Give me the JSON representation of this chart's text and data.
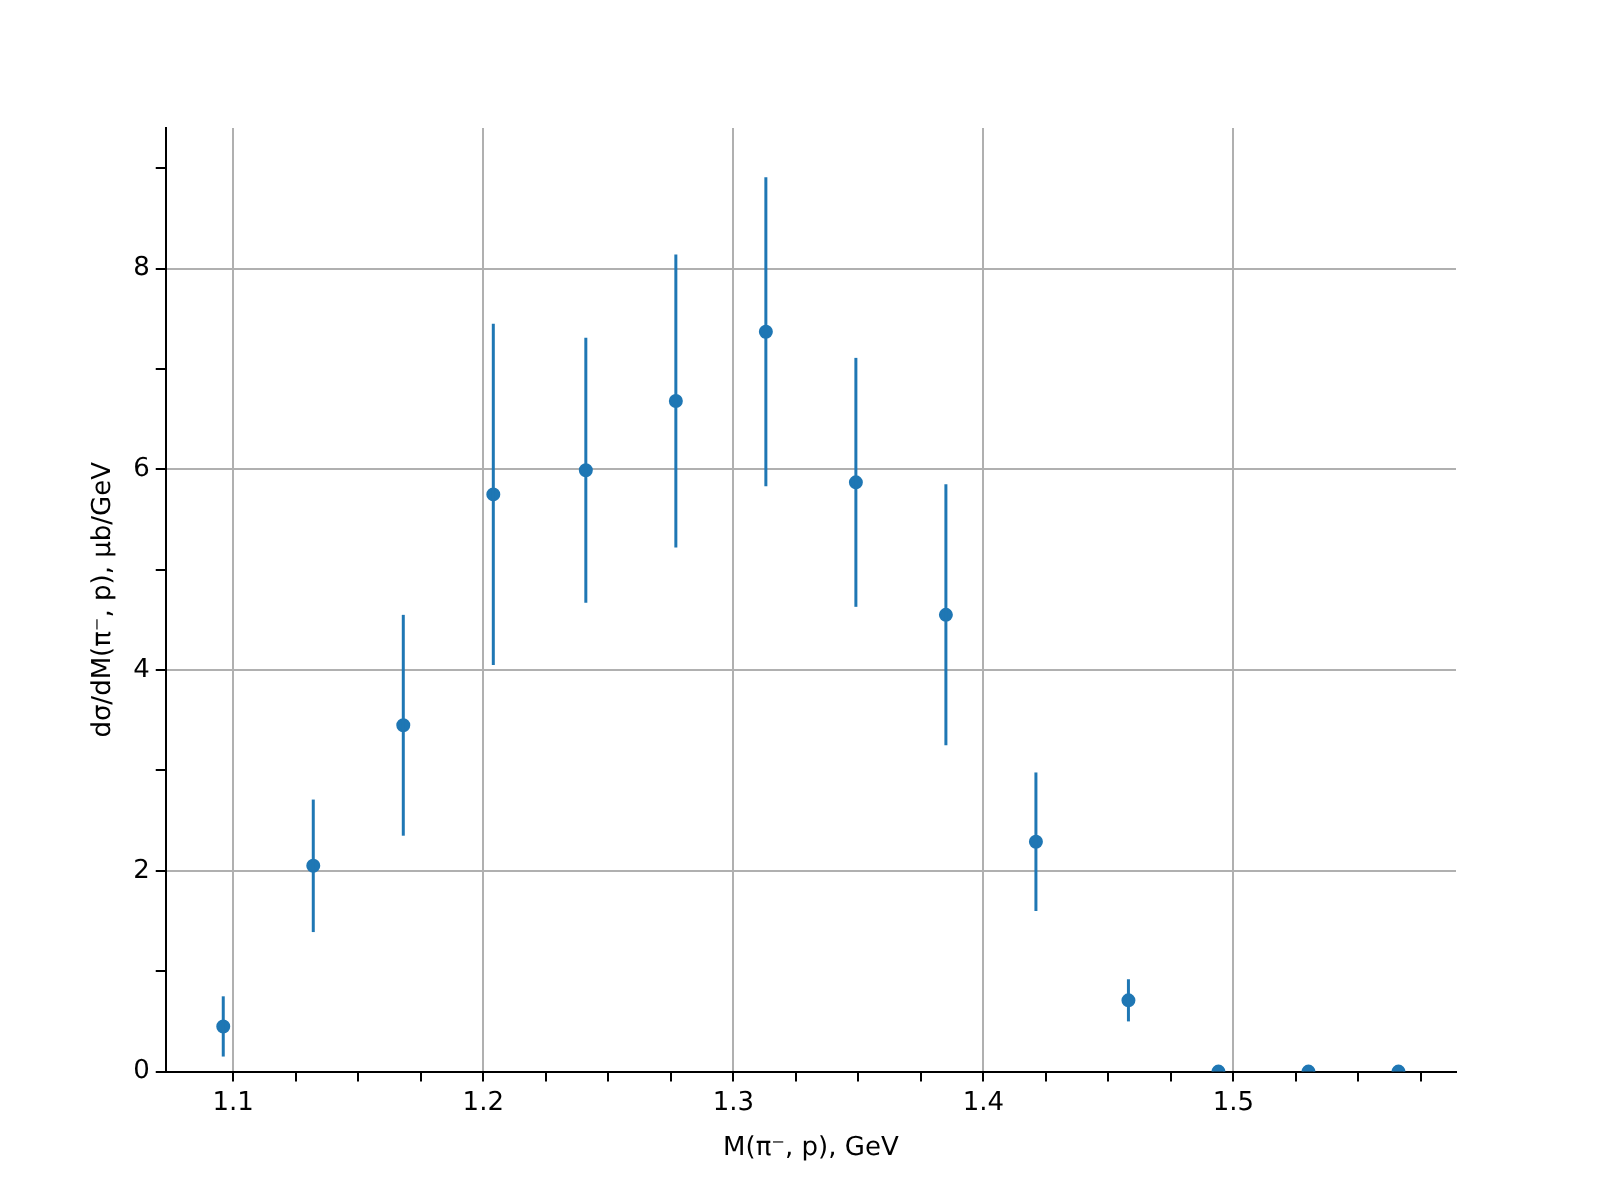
{
  "chart_data": {
    "type": "scatter",
    "xlabel": "M(π⁻, p), GeV",
    "ylabel": "dσ/dM(π⁻, p), μb/GeV",
    "x": [
      1.096,
      1.132,
      1.168,
      1.204,
      1.241,
      1.277,
      1.313,
      1.349,
      1.385,
      1.421,
      1.458,
      1.494,
      1.53,
      1.566
    ],
    "values": [
      0.45,
      2.05,
      3.45,
      5.75,
      5.99,
      6.68,
      7.37,
      5.87,
      4.55,
      2.29,
      0.71,
      0,
      0,
      0
    ],
    "errors": [
      0.3,
      0.66,
      1.1,
      1.7,
      1.32,
      1.46,
      1.54,
      1.24,
      1.3,
      0.69,
      0.21,
      null,
      null,
      null
    ],
    "color": "#1f77b4",
    "marker": "circle",
    "grid": true,
    "xlim": [
      1.073,
      1.589
    ],
    "ylim": [
      0,
      9.4
    ],
    "xticks": [
      1.1,
      {
        "value": 1.125,
        "label": null
      },
      {
        "value": 1.15,
        "label": null
      },
      {
        "value": 1.175,
        "label": null
      },
      1.2,
      {
        "value": 1.225,
        "label": null
      },
      {
        "value": 1.25,
        "label": null
      },
      {
        "value": 1.275,
        "label": null
      },
      1.3,
      {
        "value": 1.325,
        "label": null
      },
      {
        "value": 1.35,
        "label": null
      },
      {
        "value": 1.375,
        "label": null
      },
      1.4,
      {
        "value": 1.425,
        "label": null
      },
      {
        "value": 1.45,
        "label": null
      },
      {
        "value": 1.475,
        "label": null
      },
      1.5,
      {
        "value": 1.525,
        "label": null
      },
      {
        "value": 1.55,
        "label": null
      },
      {
        "value": 1.575,
        "label": null
      }
    ],
    "yticks": [
      0,
      {
        "value": 1,
        "label": null
      },
      2,
      {
        "value": 3,
        "label": null
      },
      4,
      {
        "value": 5,
        "label": null
      },
      6,
      {
        "value": 7,
        "label": null
      },
      8,
      {
        "value": 9,
        "label": null
      }
    ]
  }
}
